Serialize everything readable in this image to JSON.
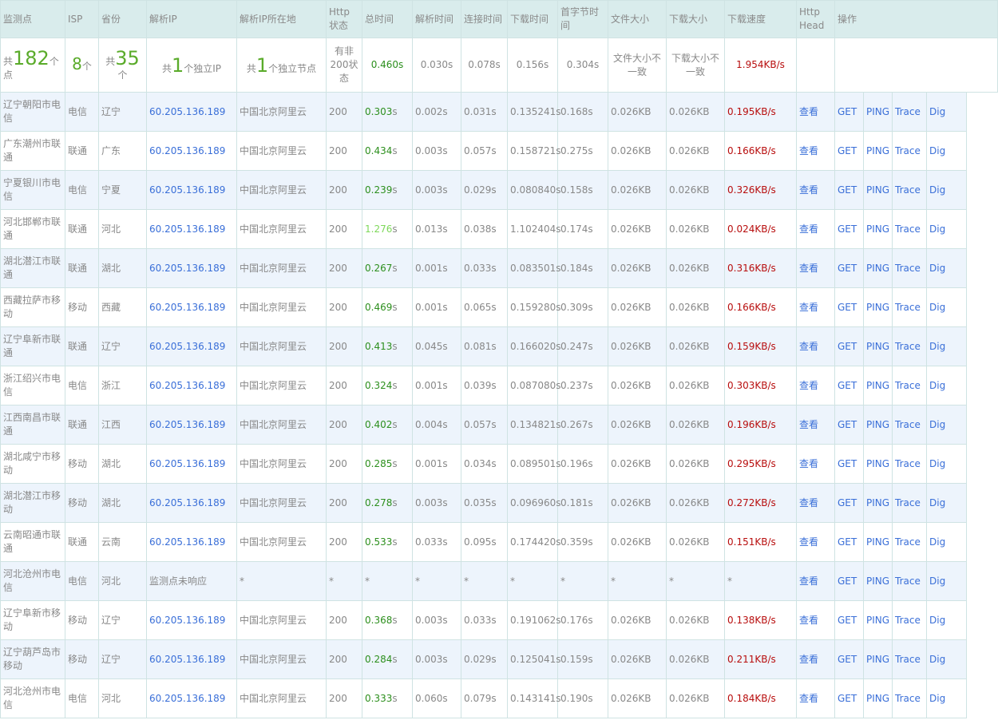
{
  "headers": [
    "监测点",
    "ISP",
    "省份",
    "解析IP",
    "解析IP所在地",
    "Http状态",
    "总时间",
    "解析时间",
    "连接时间",
    "下载时间",
    "首字节时间",
    "文件大小",
    "下载大小",
    "下载速度",
    "Http Head",
    "操作"
  ],
  "summary": {
    "points_prefix": "共",
    "points_num": "182",
    "points_suffix": "个点",
    "isp_num": "8",
    "isp_suffix": "个",
    "prov_prefix": "共",
    "prov_num": "35",
    "prov_suffix": "个",
    "ip_prefix": "共",
    "ip_num": "1",
    "ip_suffix": "个独立IP",
    "node_prefix": "共",
    "node_num": "1",
    "node_suffix": "个独立节点",
    "http_status": "有非200状态",
    "total": "0.460s",
    "dns": "0.030s",
    "connect": "0.078s",
    "download": "0.156s",
    "first_byte": "0.304s",
    "file_size": "文件大小不一致",
    "down_size": "下载大小不一致",
    "speed": "1.954KB/s"
  },
  "row_actions": {
    "view": "查看",
    "get": "GET",
    "ping": "PING",
    "trace": "Trace",
    "dig": "Dig"
  },
  "rows": [
    {
      "point": "辽宁朝阳市电信",
      "isp": "电信",
      "prov": "辽宁",
      "ip": "60.205.136.189",
      "loc": "中国北京阿里云",
      "status": "200",
      "total": "0.303",
      "dns": "0.002s",
      "connect": "0.031s",
      "download": "0.135241s",
      "first_byte": "0.168s",
      "file_size": "0.026KB",
      "down_size": "0.026KB",
      "speed": "0.195KB/s",
      "slow": false
    },
    {
      "point": "广东潮州市联通",
      "isp": "联通",
      "prov": "广东",
      "ip": "60.205.136.189",
      "loc": "中国北京阿里云",
      "status": "200",
      "total": "0.434",
      "dns": "0.003s",
      "connect": "0.057s",
      "download": "0.158721s",
      "first_byte": "0.275s",
      "file_size": "0.026KB",
      "down_size": "0.026KB",
      "speed": "0.166KB/s",
      "slow": false
    },
    {
      "point": "宁夏银川市电信",
      "isp": "电信",
      "prov": "宁夏",
      "ip": "60.205.136.189",
      "loc": "中国北京阿里云",
      "status": "200",
      "total": "0.239",
      "dns": "0.003s",
      "connect": "0.029s",
      "download": "0.080840s",
      "first_byte": "0.158s",
      "file_size": "0.026KB",
      "down_size": "0.026KB",
      "speed": "0.326KB/s",
      "slow": false
    },
    {
      "point": "河北邯郸市联通",
      "isp": "联通",
      "prov": "河北",
      "ip": "60.205.136.189",
      "loc": "中国北京阿里云",
      "status": "200",
      "total": "1.276",
      "dns": "0.013s",
      "connect": "0.038s",
      "download": "1.102404s",
      "first_byte": "0.174s",
      "file_size": "0.026KB",
      "down_size": "0.026KB",
      "speed": "0.024KB/s",
      "slow": true
    },
    {
      "point": "湖北潜江市联通",
      "isp": "联通",
      "prov": "湖北",
      "ip": "60.205.136.189",
      "loc": "中国北京阿里云",
      "status": "200",
      "total": "0.267",
      "dns": "0.001s",
      "connect": "0.033s",
      "download": "0.083501s",
      "first_byte": "0.184s",
      "file_size": "0.026KB",
      "down_size": "0.026KB",
      "speed": "0.316KB/s",
      "slow": false
    },
    {
      "point": "西藏拉萨市移动",
      "isp": "移动",
      "prov": "西藏",
      "ip": "60.205.136.189",
      "loc": "中国北京阿里云",
      "status": "200",
      "total": "0.469",
      "dns": "0.001s",
      "connect": "0.065s",
      "download": "0.159280s",
      "first_byte": "0.309s",
      "file_size": "0.026KB",
      "down_size": "0.026KB",
      "speed": "0.166KB/s",
      "slow": false
    },
    {
      "point": "辽宁阜新市联通",
      "isp": "联通",
      "prov": "辽宁",
      "ip": "60.205.136.189",
      "loc": "中国北京阿里云",
      "status": "200",
      "total": "0.413",
      "dns": "0.045s",
      "connect": "0.081s",
      "download": "0.166020s",
      "first_byte": "0.247s",
      "file_size": "0.026KB",
      "down_size": "0.026KB",
      "speed": "0.159KB/s",
      "slow": false
    },
    {
      "point": "浙江绍兴市电信",
      "isp": "电信",
      "prov": "浙江",
      "ip": "60.205.136.189",
      "loc": "中国北京阿里云",
      "status": "200",
      "total": "0.324",
      "dns": "0.001s",
      "connect": "0.039s",
      "download": "0.087080s",
      "first_byte": "0.237s",
      "file_size": "0.026KB",
      "down_size": "0.026KB",
      "speed": "0.303KB/s",
      "slow": false
    },
    {
      "point": "江西南昌市联通",
      "isp": "联通",
      "prov": "江西",
      "ip": "60.205.136.189",
      "loc": "中国北京阿里云",
      "status": "200",
      "total": "0.402",
      "dns": "0.004s",
      "connect": "0.057s",
      "download": "0.134821s",
      "first_byte": "0.267s",
      "file_size": "0.026KB",
      "down_size": "0.026KB",
      "speed": "0.196KB/s",
      "slow": false
    },
    {
      "point": "湖北咸宁市移动",
      "isp": "移动",
      "prov": "湖北",
      "ip": "60.205.136.189",
      "loc": "中国北京阿里云",
      "status": "200",
      "total": "0.285",
      "dns": "0.001s",
      "connect": "0.034s",
      "download": "0.089501s",
      "first_byte": "0.196s",
      "file_size": "0.026KB",
      "down_size": "0.026KB",
      "speed": "0.295KB/s",
      "slow": false
    },
    {
      "point": "湖北潜江市移动",
      "isp": "移动",
      "prov": "湖北",
      "ip": "60.205.136.189",
      "loc": "中国北京阿里云",
      "status": "200",
      "total": "0.278",
      "dns": "0.003s",
      "connect": "0.035s",
      "download": "0.096960s",
      "first_byte": "0.181s",
      "file_size": "0.026KB",
      "down_size": "0.026KB",
      "speed": "0.272KB/s",
      "slow": false
    },
    {
      "point": "云南昭通市联通",
      "isp": "联通",
      "prov": "云南",
      "ip": "60.205.136.189",
      "loc": "中国北京阿里云",
      "status": "200",
      "total": "0.533",
      "dns": "0.033s",
      "connect": "0.095s",
      "download": "0.174420s",
      "first_byte": "0.359s",
      "file_size": "0.026KB",
      "down_size": "0.026KB",
      "speed": "0.151KB/s",
      "slow": false
    },
    {
      "point": "河北沧州市电信",
      "isp": "电信",
      "prov": "河北",
      "ip": "监测点未响应",
      "loc": "*",
      "status": "*",
      "total": "*",
      "dns": "*",
      "connect": "*",
      "download": "*",
      "first_byte": "*",
      "file_size": "*",
      "down_size": "*",
      "speed": "*",
      "noresp": true
    },
    {
      "point": "辽宁阜新市移动",
      "isp": "移动",
      "prov": "辽宁",
      "ip": "60.205.136.189",
      "loc": "中国北京阿里云",
      "status": "200",
      "total": "0.368",
      "dns": "0.003s",
      "connect": "0.033s",
      "download": "0.191062s",
      "first_byte": "0.176s",
      "file_size": "0.026KB",
      "down_size": "0.026KB",
      "speed": "0.138KB/s",
      "slow": false
    },
    {
      "point": "辽宁葫芦岛市移动",
      "isp": "移动",
      "prov": "辽宁",
      "ip": "60.205.136.189",
      "loc": "中国北京阿里云",
      "status": "200",
      "total": "0.284",
      "dns": "0.003s",
      "connect": "0.029s",
      "download": "0.125041s",
      "first_byte": "0.159s",
      "file_size": "0.026KB",
      "down_size": "0.026KB",
      "speed": "0.211KB/s",
      "slow": false
    },
    {
      "point": "河北沧州市电信",
      "isp": "电信",
      "prov": "河北",
      "ip": "60.205.136.189",
      "loc": "中国北京阿里云",
      "status": "200",
      "total": "0.333",
      "dns": "0.060s",
      "connect": "0.079s",
      "download": "0.143141s",
      "first_byte": "0.190s",
      "file_size": "0.026KB",
      "down_size": "0.026KB",
      "speed": "0.184KB/s",
      "slow": false
    }
  ]
}
